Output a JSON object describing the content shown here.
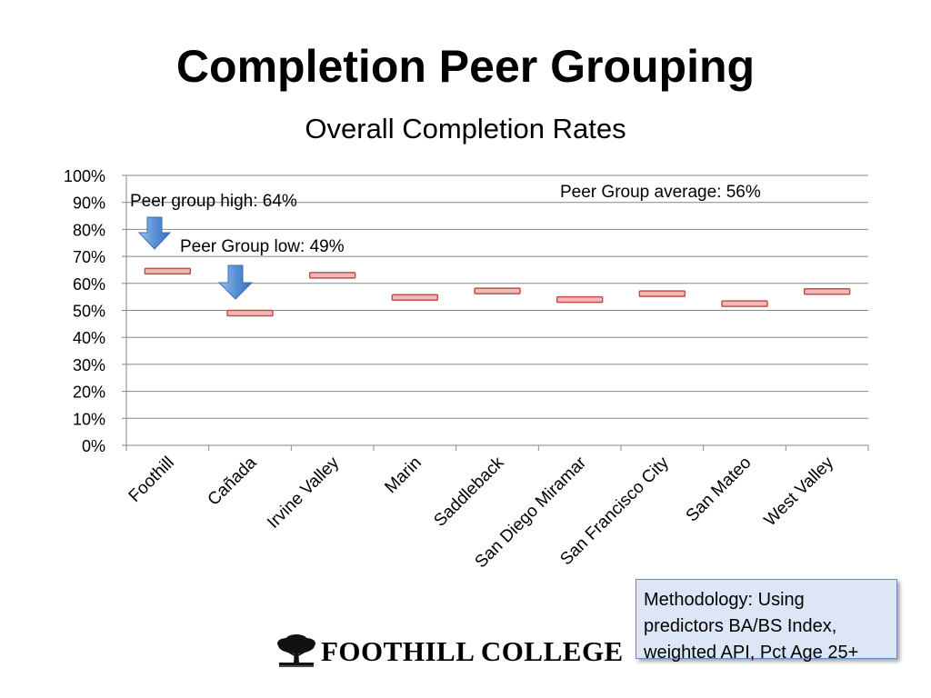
{
  "slide": {
    "title": "Completion Peer Grouping",
    "methodology_text": "Methodology: Using predictors BA/BS Index, weighted API, Pct Age 25+",
    "logo_text": "FOOTHILL COLLEGE"
  },
  "chart_data": {
    "type": "scatter",
    "title": "Overall Completion Rates",
    "categories": [
      "Foothill",
      "Cañada",
      "Irvine Valley",
      "Marin",
      "Saddleback",
      "San Diego Miramar",
      "San Francisco City",
      "San Mateo",
      "West Valley"
    ],
    "values": [
      0.645,
      0.49,
      0.63,
      0.548,
      0.572,
      0.54,
      0.562,
      0.525,
      0.57
    ],
    "ylim": [
      0,
      1
    ],
    "y_ticks": [
      "0%",
      "10%",
      "20%",
      "30%",
      "40%",
      "50%",
      "60%",
      "70%",
      "80%",
      "90%",
      "100%"
    ],
    "grid": true,
    "marker_color": "#f2b8b8",
    "marker_edge_color": "#c0504d",
    "annotations": [
      {
        "text": "Peer group high: 64%",
        "category": "Foothill",
        "arrow": true
      },
      {
        "text": "Peer Group low: 49%",
        "category": "Cañada",
        "arrow": true
      },
      {
        "text": "Peer Group average: 56%",
        "arrow": false
      }
    ],
    "arrow_color": "#4f81bd"
  }
}
